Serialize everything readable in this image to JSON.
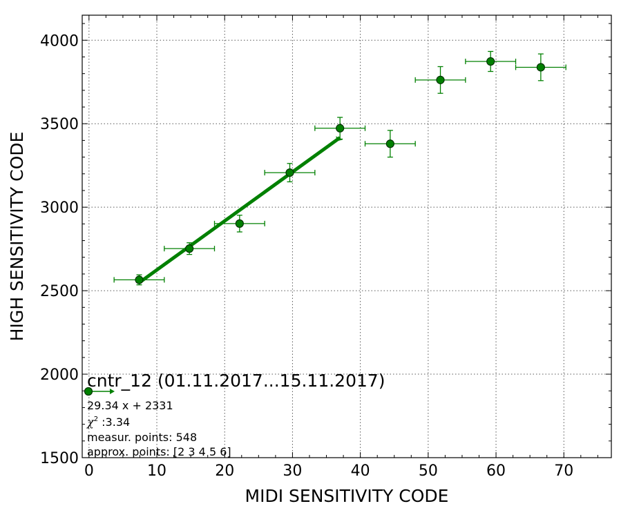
{
  "chart_data": {
    "type": "scatter",
    "xlabel": "MIDI SENSITIVITY CODE",
    "ylabel": "HIGH SENSITIVITY CODE",
    "xlim": [
      -1,
      77
    ],
    "ylim": [
      1500,
      4150
    ],
    "x_ticks": [
      0,
      10,
      20,
      30,
      40,
      50,
      60,
      70
    ],
    "y_ticks": [
      1500,
      2000,
      2500,
      3000,
      3500,
      4000
    ],
    "grid": true,
    "colors": {
      "series": "#008000",
      "marker_edge": "#003300"
    },
    "points": [
      {
        "x": 7.4,
        "y": 2565,
        "xerr": 3.7,
        "yerr": 30
      },
      {
        "x": 14.8,
        "y": 2752,
        "xerr": 3.7,
        "yerr": 35
      },
      {
        "x": 22.2,
        "y": 2902,
        "xerr": 3.7,
        "yerr": 50
      },
      {
        "x": 29.6,
        "y": 3207,
        "xerr": 3.7,
        "yerr": 55
      },
      {
        "x": 37.0,
        "y": 3473,
        "xerr": 3.7,
        "yerr": 65
      },
      {
        "x": 44.4,
        "y": 3380,
        "xerr": 3.7,
        "yerr": 80
      },
      {
        "x": 51.8,
        "y": 3762,
        "xerr": 3.7,
        "yerr": 80
      },
      {
        "x": 59.2,
        "y": 3873,
        "xerr": 3.7,
        "yerr": 60
      },
      {
        "x": 66.6,
        "y": 3838,
        "xerr": 3.7,
        "yerr": 80
      }
    ],
    "fit": {
      "slope": 29.34,
      "intercept": 2331,
      "x_from": 7.4,
      "x_to": 37.0
    },
    "annotation": {
      "title": "cntr_12 (01.11.2017...15.11.2017)",
      "formula": "29.34 x + 2331",
      "chi_symbol": "χ",
      "chi_sup": "2",
      "chi_value": " :3.34",
      "measur_points": "measur. points: 548",
      "approx_points": "approx. points: [2 3 4 5 6]"
    }
  }
}
